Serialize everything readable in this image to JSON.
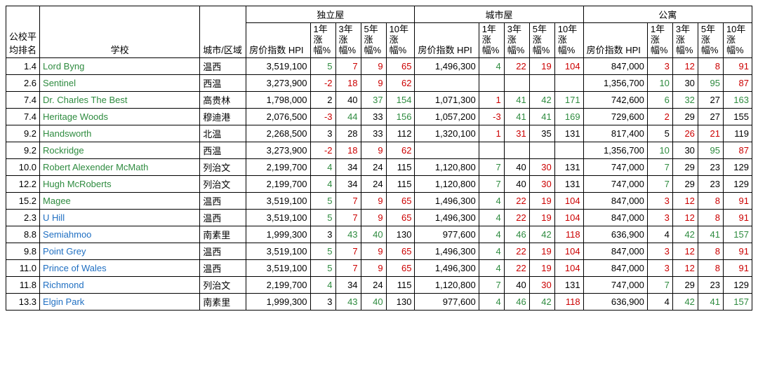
{
  "headers": {
    "rank": "公校平均排名",
    "school": "学校",
    "area": "城市/区域",
    "groups": [
      "独立屋",
      "城市屋",
      "公寓"
    ],
    "sub": {
      "hpi": "房价指数\nHPI",
      "y1": "1年涨幅%",
      "y3": "3年涨幅%",
      "y5": "5年涨幅%",
      "y10": "10年涨幅%"
    }
  },
  "colors": {
    "pos": "#2e8b3f",
    "neg": "#cc0000",
    "neu": "#000000",
    "school_green": "#2e8b3f",
    "school_blue": "#1f6fc2"
  },
  "rows": [
    {
      "rank": "1.4",
      "school": "Lord Byng",
      "sc": "green",
      "area": "温西",
      "g": [
        {
          "hpi": "3,519,100",
          "v": [
            [
              "5",
              "pos"
            ],
            [
              "7",
              "neg"
            ],
            [
              "9",
              "neg"
            ],
            [
              "65",
              "neg"
            ]
          ]
        },
        {
          "hpi": "1,496,300",
          "v": [
            [
              "4",
              "pos"
            ],
            [
              "22",
              "neg"
            ],
            [
              "19",
              "neg"
            ],
            [
              "104",
              "neg"
            ]
          ]
        },
        {
          "hpi": "847,000",
          "v": [
            [
              "3",
              "neg"
            ],
            [
              "12",
              "neg"
            ],
            [
              "8",
              "neg"
            ],
            [
              "91",
              "neg"
            ]
          ]
        }
      ]
    },
    {
      "rank": "2.6",
      "school": "Sentinel",
      "sc": "green",
      "area": "西温",
      "g": [
        {
          "hpi": "3,273,900",
          "v": [
            [
              "-2",
              "neg"
            ],
            [
              "18",
              "neg"
            ],
            [
              "9",
              "neg"
            ],
            [
              "62",
              "neg"
            ]
          ]
        },
        {
          "hpi": "",
          "v": [
            [
              "",
              ""
            ],
            [
              "",
              ""
            ],
            [
              "",
              ""
            ],
            [
              "",
              ""
            ]
          ]
        },
        {
          "hpi": "1,356,700",
          "v": [
            [
              "10",
              "pos"
            ],
            [
              "30",
              "neu"
            ],
            [
              "95",
              "pos"
            ],
            [
              "87",
              "neg"
            ]
          ]
        }
      ]
    },
    {
      "rank": "7.4",
      "school": "Dr. Charles The Best",
      "sc": "green",
      "area": "高贵林",
      "g": [
        {
          "hpi": "1,798,000",
          "v": [
            [
              "2",
              "neu"
            ],
            [
              "40",
              "neu"
            ],
            [
              "37",
              "pos"
            ],
            [
              "154",
              "pos"
            ]
          ]
        },
        {
          "hpi": "1,071,300",
          "v": [
            [
              "1",
              "neg"
            ],
            [
              "41",
              "pos"
            ],
            [
              "42",
              "pos"
            ],
            [
              "171",
              "pos"
            ]
          ]
        },
        {
          "hpi": "742,600",
          "v": [
            [
              "6",
              "pos"
            ],
            [
              "32",
              "pos"
            ],
            [
              "27",
              "neu"
            ],
            [
              "163",
              "pos"
            ]
          ]
        }
      ]
    },
    {
      "rank": "7.4",
      "school": "Heritage Woods",
      "sc": "green",
      "area": "穆迪港",
      "g": [
        {
          "hpi": "2,076,500",
          "v": [
            [
              "-3",
              "neg"
            ],
            [
              "44",
              "pos"
            ],
            [
              "33",
              "neu"
            ],
            [
              "156",
              "pos"
            ]
          ]
        },
        {
          "hpi": "1,057,200",
          "v": [
            [
              "-3",
              "neg"
            ],
            [
              "41",
              "pos"
            ],
            [
              "41",
              "pos"
            ],
            [
              "169",
              "pos"
            ]
          ]
        },
        {
          "hpi": "729,600",
          "v": [
            [
              "2",
              "neg"
            ],
            [
              "29",
              "neu"
            ],
            [
              "27",
              "neu"
            ],
            [
              "155",
              "neu"
            ]
          ]
        }
      ]
    },
    {
      "rank": "9.2",
      "school": "Handsworth",
      "sc": "green",
      "area": "北温",
      "g": [
        {
          "hpi": "2,268,500",
          "v": [
            [
              "3",
              "neu"
            ],
            [
              "28",
              "neu"
            ],
            [
              "33",
              "neu"
            ],
            [
              "112",
              "neu"
            ]
          ]
        },
        {
          "hpi": "1,320,100",
          "v": [
            [
              "1",
              "neg"
            ],
            [
              "31",
              "neg"
            ],
            [
              "35",
              "neu"
            ],
            [
              "131",
              "neu"
            ]
          ]
        },
        {
          "hpi": "817,400",
          "v": [
            [
              "5",
              "neu"
            ],
            [
              "26",
              "neg"
            ],
            [
              "21",
              "neg"
            ],
            [
              "119",
              "neu"
            ]
          ]
        }
      ]
    },
    {
      "rank": "9.2",
      "school": "Rockridge",
      "sc": "green",
      "area": "西温",
      "g": [
        {
          "hpi": "3,273,900",
          "v": [
            [
              "-2",
              "neg"
            ],
            [
              "18",
              "neg"
            ],
            [
              "9",
              "neg"
            ],
            [
              "62",
              "neg"
            ]
          ]
        },
        {
          "hpi": "",
          "v": [
            [
              "",
              ""
            ],
            [
              "",
              ""
            ],
            [
              "",
              ""
            ],
            [
              "",
              ""
            ]
          ]
        },
        {
          "hpi": "1,356,700",
          "v": [
            [
              "10",
              "pos"
            ],
            [
              "30",
              "neu"
            ],
            [
              "95",
              "pos"
            ],
            [
              "87",
              "neg"
            ]
          ]
        }
      ]
    },
    {
      "rank": "10.0",
      "school": "Robert Alexender McMath",
      "sc": "green",
      "area": "列治文",
      "g": [
        {
          "hpi": "2,199,700",
          "v": [
            [
              "4",
              "pos"
            ],
            [
              "34",
              "neu"
            ],
            [
              "24",
              "neu"
            ],
            [
              "115",
              "neu"
            ]
          ]
        },
        {
          "hpi": "1,120,800",
          "v": [
            [
              "7",
              "pos"
            ],
            [
              "40",
              "neu"
            ],
            [
              "30",
              "neg"
            ],
            [
              "131",
              "neu"
            ]
          ]
        },
        {
          "hpi": "747,000",
          "v": [
            [
              "7",
              "pos"
            ],
            [
              "29",
              "neu"
            ],
            [
              "23",
              "neu"
            ],
            [
              "129",
              "neu"
            ]
          ]
        }
      ]
    },
    {
      "rank": "12.2",
      "school": "Hugh McRoberts",
      "sc": "green",
      "area": "列治文",
      "g": [
        {
          "hpi": "2,199,700",
          "v": [
            [
              "4",
              "pos"
            ],
            [
              "34",
              "neu"
            ],
            [
              "24",
              "neu"
            ],
            [
              "115",
              "neu"
            ]
          ]
        },
        {
          "hpi": "1,120,800",
          "v": [
            [
              "7",
              "pos"
            ],
            [
              "40",
              "neu"
            ],
            [
              "30",
              "neg"
            ],
            [
              "131",
              "neu"
            ]
          ]
        },
        {
          "hpi": "747,000",
          "v": [
            [
              "7",
              "pos"
            ],
            [
              "29",
              "neu"
            ],
            [
              "23",
              "neu"
            ],
            [
              "129",
              "neu"
            ]
          ]
        }
      ]
    },
    {
      "rank": "15.2",
      "school": "Magee",
      "sc": "green",
      "area": "温西",
      "g": [
        {
          "hpi": "3,519,100",
          "v": [
            [
              "5",
              "pos"
            ],
            [
              "7",
              "neg"
            ],
            [
              "9",
              "neg"
            ],
            [
              "65",
              "neg"
            ]
          ]
        },
        {
          "hpi": "1,496,300",
          "v": [
            [
              "4",
              "pos"
            ],
            [
              "22",
              "neg"
            ],
            [
              "19",
              "neg"
            ],
            [
              "104",
              "neg"
            ]
          ]
        },
        {
          "hpi": "847,000",
          "v": [
            [
              "3",
              "neg"
            ],
            [
              "12",
              "neg"
            ],
            [
              "8",
              "neg"
            ],
            [
              "91",
              "neg"
            ]
          ]
        }
      ]
    },
    {
      "rank": "2.3",
      "school": "U Hill",
      "sc": "blue",
      "area": "温西",
      "g": [
        {
          "hpi": "3,519,100",
          "v": [
            [
              "5",
              "pos"
            ],
            [
              "7",
              "neg"
            ],
            [
              "9",
              "neg"
            ],
            [
              "65",
              "neg"
            ]
          ]
        },
        {
          "hpi": "1,496,300",
          "v": [
            [
              "4",
              "pos"
            ],
            [
              "22",
              "neg"
            ],
            [
              "19",
              "neg"
            ],
            [
              "104",
              "neg"
            ]
          ]
        },
        {
          "hpi": "847,000",
          "v": [
            [
              "3",
              "neg"
            ],
            [
              "12",
              "neg"
            ],
            [
              "8",
              "neg"
            ],
            [
              "91",
              "neg"
            ]
          ]
        }
      ]
    },
    {
      "rank": "8.8",
      "school": "Semiahmoo",
      "sc": "blue",
      "area": "南素里",
      "g": [
        {
          "hpi": "1,999,300",
          "v": [
            [
              "3",
              "neu"
            ],
            [
              "43",
              "pos"
            ],
            [
              "40",
              "pos"
            ],
            [
              "130",
              "neu"
            ]
          ]
        },
        {
          "hpi": "977,600",
          "v": [
            [
              "4",
              "pos"
            ],
            [
              "46",
              "pos"
            ],
            [
              "42",
              "pos"
            ],
            [
              "118",
              "neg"
            ]
          ]
        },
        {
          "hpi": "636,900",
          "v": [
            [
              "4",
              "neu"
            ],
            [
              "42",
              "pos"
            ],
            [
              "41",
              "pos"
            ],
            [
              "157",
              "pos"
            ]
          ]
        }
      ]
    },
    {
      "rank": "9.8",
      "school": "Point Grey",
      "sc": "blue",
      "area": "温西",
      "g": [
        {
          "hpi": "3,519,100",
          "v": [
            [
              "5",
              "pos"
            ],
            [
              "7",
              "neg"
            ],
            [
              "9",
              "neg"
            ],
            [
              "65",
              "neg"
            ]
          ]
        },
        {
          "hpi": "1,496,300",
          "v": [
            [
              "4",
              "pos"
            ],
            [
              "22",
              "neg"
            ],
            [
              "19",
              "neg"
            ],
            [
              "104",
              "neg"
            ]
          ]
        },
        {
          "hpi": "847,000",
          "v": [
            [
              "3",
              "neg"
            ],
            [
              "12",
              "neg"
            ],
            [
              "8",
              "neg"
            ],
            [
              "91",
              "neg"
            ]
          ]
        }
      ]
    },
    {
      "rank": "11.0",
      "school": "Prince of Wales",
      "sc": "blue",
      "area": "温西",
      "g": [
        {
          "hpi": "3,519,100",
          "v": [
            [
              "5",
              "pos"
            ],
            [
              "7",
              "neg"
            ],
            [
              "9",
              "neg"
            ],
            [
              "65",
              "neg"
            ]
          ]
        },
        {
          "hpi": "1,496,300",
          "v": [
            [
              "4",
              "pos"
            ],
            [
              "22",
              "neg"
            ],
            [
              "19",
              "neg"
            ],
            [
              "104",
              "neg"
            ]
          ]
        },
        {
          "hpi": "847,000",
          "v": [
            [
              "3",
              "neg"
            ],
            [
              "12",
              "neg"
            ],
            [
              "8",
              "neg"
            ],
            [
              "91",
              "neg"
            ]
          ]
        }
      ]
    },
    {
      "rank": "11.8",
      "school": "Richmond",
      "sc": "blue",
      "area": "列治文",
      "g": [
        {
          "hpi": "2,199,700",
          "v": [
            [
              "4",
              "pos"
            ],
            [
              "34",
              "neu"
            ],
            [
              "24",
              "neu"
            ],
            [
              "115",
              "neu"
            ]
          ]
        },
        {
          "hpi": "1,120,800",
          "v": [
            [
              "7",
              "pos"
            ],
            [
              "40",
              "neu"
            ],
            [
              "30",
              "neg"
            ],
            [
              "131",
              "neu"
            ]
          ]
        },
        {
          "hpi": "747,000",
          "v": [
            [
              "7",
              "pos"
            ],
            [
              "29",
              "neu"
            ],
            [
              "23",
              "neu"
            ],
            [
              "129",
              "neu"
            ]
          ]
        }
      ]
    },
    {
      "rank": "13.3",
      "school": "Elgin Park",
      "sc": "blue",
      "area": "南素里",
      "g": [
        {
          "hpi": "1,999,300",
          "v": [
            [
              "3",
              "neu"
            ],
            [
              "43",
              "pos"
            ],
            [
              "40",
              "pos"
            ],
            [
              "130",
              "neu"
            ]
          ]
        },
        {
          "hpi": "977,600",
          "v": [
            [
              "4",
              "pos"
            ],
            [
              "46",
              "pos"
            ],
            [
              "42",
              "pos"
            ],
            [
              "118",
              "neg"
            ]
          ]
        },
        {
          "hpi": "636,900",
          "v": [
            [
              "4",
              "neu"
            ],
            [
              "42",
              "pos"
            ],
            [
              "41",
              "pos"
            ],
            [
              "157",
              "pos"
            ]
          ]
        }
      ]
    }
  ]
}
